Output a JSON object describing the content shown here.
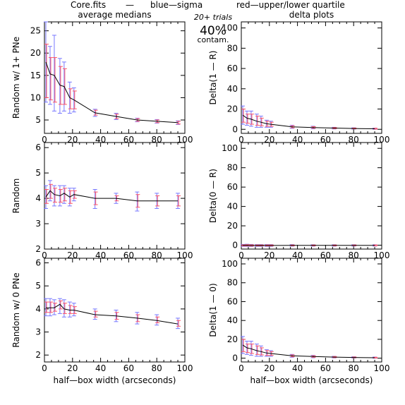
{
  "header": {
    "file_label": "Core.fits",
    "separator": "—",
    "blue_label": "blue—sigma",
    "red_label": "red—upper/lower quartile",
    "blue_color": "#3333ff",
    "red_color": "#ff3344"
  },
  "annotations": {
    "trials": "20+ trials",
    "percent": "40%",
    "contam": "contam."
  },
  "colors": {
    "line": "#000000",
    "sigma": "#7777ff",
    "quartile": "#ff5566",
    "frame": "#000000"
  },
  "chart_data": [
    {
      "type": "line",
      "title": "average medians",
      "xlabel": "",
      "ylabel": "Random w/ 1+ PNe",
      "xlim": [
        0,
        100
      ],
      "ylim": [
        2,
        27
      ],
      "xticks": [
        0,
        20,
        40,
        60,
        80,
        100
      ],
      "yticks": [
        5,
        10,
        15,
        20,
        25
      ],
      "x": [
        1,
        4,
        7,
        11,
        14,
        18,
        21,
        36,
        51,
        66,
        80,
        95
      ],
      "y": [
        18,
        15.3,
        15,
        12.8,
        12.5,
        10,
        9.5,
        6.6,
        5.8,
        5.0,
        4.7,
        4.4
      ],
      "sigma_lo": [
        9,
        8.5,
        7,
        6.5,
        7,
        6.5,
        6.8,
        5.8,
        5.1,
        4.6,
        4.3,
        4.0
      ],
      "sigma_hi": [
        27,
        21.5,
        24,
        18.8,
        18,
        13.5,
        12.2,
        7.4,
        6.5,
        5.4,
        5.1,
        4.8
      ],
      "q_lo": [
        10,
        9.5,
        9,
        8.5,
        8.5,
        7.5,
        7.5,
        6.1,
        5.3,
        4.7,
        4.4,
        4.1
      ],
      "q_hi": [
        22,
        19,
        19,
        17,
        16.5,
        12,
        11.5,
        7.2,
        6.3,
        5.3,
        5.0,
        4.7
      ]
    },
    {
      "type": "line",
      "title": "delta plots",
      "xlabel": "",
      "ylabel": "Delta(1 — R)",
      "xlim": [
        0,
        100
      ],
      "ylim": [
        -4,
        106
      ],
      "xticks": [
        0,
        20,
        40,
        60,
        80,
        100
      ],
      "yticks": [
        0,
        20,
        40,
        60,
        80,
        100
      ],
      "x": [
        1,
        4,
        7,
        11,
        14,
        18,
        21,
        36,
        51,
        66,
        80,
        95
      ],
      "y": [
        14,
        11,
        10,
        8,
        7,
        5.5,
        5,
        2.5,
        1.8,
        1.2,
        0.8,
        0.5
      ],
      "sigma_lo": [
        5,
        4,
        3,
        2,
        2,
        2,
        2,
        1,
        0.5,
        0.3,
        0.2,
        0
      ],
      "sigma_hi": [
        23,
        18,
        18,
        15,
        13,
        9,
        8,
        4,
        3,
        2,
        1.5,
        1.2
      ],
      "q_lo": [
        7,
        6,
        5,
        4,
        3.5,
        3,
        3,
        1.5,
        1,
        0.6,
        0.4,
        0.2
      ],
      "q_hi": [
        20,
        15,
        15,
        13,
        11,
        8,
        7,
        3.5,
        2.6,
        1.8,
        1.3,
        1
      ]
    },
    {
      "type": "line",
      "title": "",
      "xlabel": "",
      "ylabel": "Random",
      "xlim": [
        0,
        100
      ],
      "ylim": [
        2,
        6.2
      ],
      "xticks": [
        0,
        20,
        40,
        60,
        80,
        100
      ],
      "yticks": [
        2,
        3,
        4,
        5,
        6
      ],
      "x": [
        1,
        4,
        7,
        11,
        14,
        18,
        21,
        36,
        51,
        66,
        80,
        95
      ],
      "y": [
        4.05,
        4.3,
        4.15,
        4.1,
        4.2,
        4.05,
        4.15,
        4.0,
        4.0,
        3.9,
        3.9,
        3.9
      ],
      "sigma_lo": [
        3.6,
        3.9,
        3.7,
        3.7,
        3.8,
        3.7,
        3.9,
        3.6,
        3.8,
        3.5,
        3.6,
        3.6
      ],
      "sigma_hi": [
        4.5,
        4.7,
        4.5,
        4.5,
        4.5,
        4.4,
        4.4,
        4.35,
        4.2,
        4.25,
        4.2,
        4.2
      ],
      "q_lo": [
        3.8,
        4.0,
        3.85,
        3.85,
        3.9,
        3.8,
        4.0,
        3.75,
        3.9,
        3.65,
        3.7,
        3.7
      ],
      "q_hi": [
        4.35,
        4.55,
        4.4,
        4.35,
        4.4,
        4.3,
        4.3,
        4.25,
        4.1,
        4.15,
        4.1,
        4.1
      ]
    },
    {
      "type": "line",
      "title": "",
      "xlabel": "",
      "ylabel": "Delta(0 — R)",
      "xlim": [
        0,
        100
      ],
      "ylim": [
        -4,
        106
      ],
      "xticks": [
        0,
        20,
        40,
        60,
        80,
        100
      ],
      "yticks": [
        0,
        20,
        40,
        60,
        80,
        100
      ],
      "x": [
        1,
        4,
        7,
        11,
        14,
        18,
        21,
        36,
        51,
        66,
        80,
        95
      ],
      "y": [
        -0.2,
        -0.1,
        -0.3,
        -0.3,
        -0.2,
        -0.3,
        -0.3,
        -0.2,
        -0.2,
        -0.2,
        -0.2,
        -0.2
      ],
      "sigma_lo": [
        -1.2,
        -1.2,
        -1.3,
        -1.2,
        -1.2,
        -1.2,
        -1.2,
        -1.0,
        -1.0,
        -1.0,
        -0.9,
        -0.9
      ],
      "sigma_hi": [
        0.8,
        1.0,
        0.8,
        0.6,
        0.6,
        0.6,
        0.6,
        0.6,
        0.5,
        0.5,
        0.5,
        0.5
      ],
      "q_lo": [
        -0.8,
        -0.8,
        -0.9,
        -0.8,
        -0.8,
        -0.8,
        -0.8,
        -0.7,
        -0.7,
        -0.7,
        -0.6,
        -0.6
      ],
      "q_hi": [
        0.4,
        0.6,
        0.4,
        0.3,
        0.3,
        0.3,
        0.3,
        0.3,
        0.3,
        0.3,
        0.3,
        0.3
      ]
    },
    {
      "type": "line",
      "title": "",
      "xlabel": "half—box width (arcseconds)",
      "ylabel": "Random w/ 0 PNe",
      "xlim": [
        0,
        100
      ],
      "ylim": [
        1.7,
        6.2
      ],
      "xticks": [
        0,
        20,
        40,
        60,
        80,
        100
      ],
      "yticks": [
        2,
        3,
        4,
        5,
        6
      ],
      "x": [
        1,
        4,
        7,
        11,
        14,
        18,
        21,
        36,
        51,
        66,
        80,
        95
      ],
      "y": [
        4.05,
        4.05,
        4.05,
        4.2,
        4.0,
        3.95,
        3.95,
        3.75,
        3.7,
        3.6,
        3.5,
        3.35
      ],
      "sigma_lo": [
        3.7,
        3.7,
        3.75,
        3.8,
        3.65,
        3.65,
        3.7,
        3.55,
        3.45,
        3.35,
        3.3,
        3.15
      ],
      "sigma_hi": [
        4.45,
        4.45,
        4.4,
        4.45,
        4.4,
        4.3,
        4.25,
        4.0,
        3.95,
        3.85,
        3.75,
        3.6
      ],
      "q_lo": [
        3.85,
        3.85,
        3.9,
        4.0,
        3.8,
        3.8,
        3.8,
        3.65,
        3.55,
        3.45,
        3.4,
        3.25
      ],
      "q_hi": [
        4.3,
        4.3,
        4.25,
        4.35,
        4.25,
        4.15,
        4.1,
        3.9,
        3.85,
        3.75,
        3.65,
        3.5
      ]
    },
    {
      "type": "line",
      "title": "",
      "xlabel": "half—box width (arcseconds)",
      "ylabel": "Delta(1 — 0)",
      "xlim": [
        0,
        100
      ],
      "ylim": [
        -4,
        106
      ],
      "xticks": [
        0,
        20,
        40,
        60,
        80,
        100
      ],
      "yticks": [
        0,
        20,
        40,
        60,
        80,
        100
      ],
      "x": [
        1,
        4,
        7,
        11,
        14,
        18,
        21,
        36,
        51,
        66,
        80,
        95
      ],
      "y": [
        14,
        11,
        10,
        8,
        7,
        5.5,
        5,
        2.5,
        1.8,
        1.2,
        0.8,
        0.5
      ],
      "sigma_lo": [
        5,
        4,
        3,
        2,
        2,
        2,
        2,
        1,
        0.5,
        0.3,
        0.2,
        0
      ],
      "sigma_hi": [
        23,
        18,
        18,
        15,
        13,
        9,
        8,
        4,
        3,
        2,
        1.5,
        1.2
      ],
      "q_lo": [
        7,
        6,
        5,
        4,
        3.5,
        3,
        3,
        1.5,
        1,
        0.6,
        0.4,
        0.2
      ],
      "q_hi": [
        20,
        15,
        15,
        13,
        11,
        8,
        7,
        3.5,
        2.6,
        1.8,
        1.3,
        1
      ]
    }
  ]
}
